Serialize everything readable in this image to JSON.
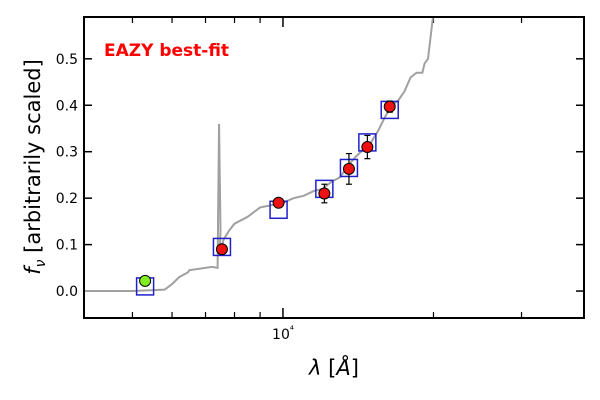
{
  "chart_data": {
    "type": "scatter",
    "annotation": "EAZY best-fit",
    "xlabel": "λ [Å]",
    "ylabel": "f_ν [arbitrarily scaled]",
    "x_scale": "log",
    "xlim": [
      4000,
      40000
    ],
    "ylim": [
      -0.058,
      0.59
    ],
    "grid": false,
    "x_ticks": [
      {
        "value": 10000,
        "label": "10⁴"
      }
    ],
    "y_ticks": [
      {
        "value": 0.0,
        "label": "0.0"
      },
      {
        "value": 0.1,
        "label": "0.1"
      },
      {
        "value": 0.2,
        "label": "0.2"
      },
      {
        "value": 0.3,
        "label": "0.3"
      },
      {
        "value": 0.4,
        "label": "0.4"
      },
      {
        "value": 0.5,
        "label": "0.5"
      }
    ],
    "template_curve": {
      "color": "#a0a0a0",
      "x": [
        4000,
        5000,
        5800,
        6000,
        6200,
        6450,
        6500,
        7000,
        7200,
        7400,
        7450,
        7500,
        7480,
        7520,
        7600,
        7800,
        8000,
        8500,
        9000,
        9500,
        10000,
        10500,
        11000,
        11500,
        12000,
        12500,
        13000,
        13500,
        14000,
        15000,
        15500,
        16000,
        16500,
        17000,
        17500,
        18000,
        18500,
        19000,
        19200,
        19500,
        19800,
        20000
      ],
      "y": [
        0.0,
        0.0,
        0.003,
        0.015,
        0.03,
        0.04,
        0.045,
        0.05,
        0.052,
        0.05,
        0.36,
        0.13,
        0.09,
        0.085,
        0.11,
        0.13,
        0.145,
        0.16,
        0.18,
        0.185,
        0.19,
        0.2,
        0.205,
        0.215,
        0.22,
        0.235,
        0.245,
        0.27,
        0.29,
        0.32,
        0.345,
        0.375,
        0.4,
        0.41,
        0.43,
        0.46,
        0.47,
        0.47,
        0.49,
        0.5,
        0.56,
        0.6
      ]
    },
    "model_photometry": {
      "marker": "open-square",
      "color": "#2020cc",
      "x": [
        5300,
        7550,
        9800,
        12100,
        13550,
        14750,
        16350
      ],
      "y": [
        0.01,
        0.095,
        0.175,
        0.22,
        0.265,
        0.32,
        0.39
      ]
    },
    "observed_photometry": {
      "marker": "circle",
      "x": [
        5300,
        7550,
        9800,
        12100,
        13550,
        14750,
        16350
      ],
      "y": [
        0.022,
        0.09,
        0.19,
        0.21,
        0.263,
        0.31,
        0.397
      ],
      "yerr": [
        0.0,
        0.0,
        0.0,
        0.02,
        0.033,
        0.025,
        0.012
      ],
      "colors": [
        "#80ee20",
        "#ee1111",
        "#ee1111",
        "#ee1111",
        "#ee1111",
        "#ee1111",
        "#ee1111"
      ]
    }
  }
}
